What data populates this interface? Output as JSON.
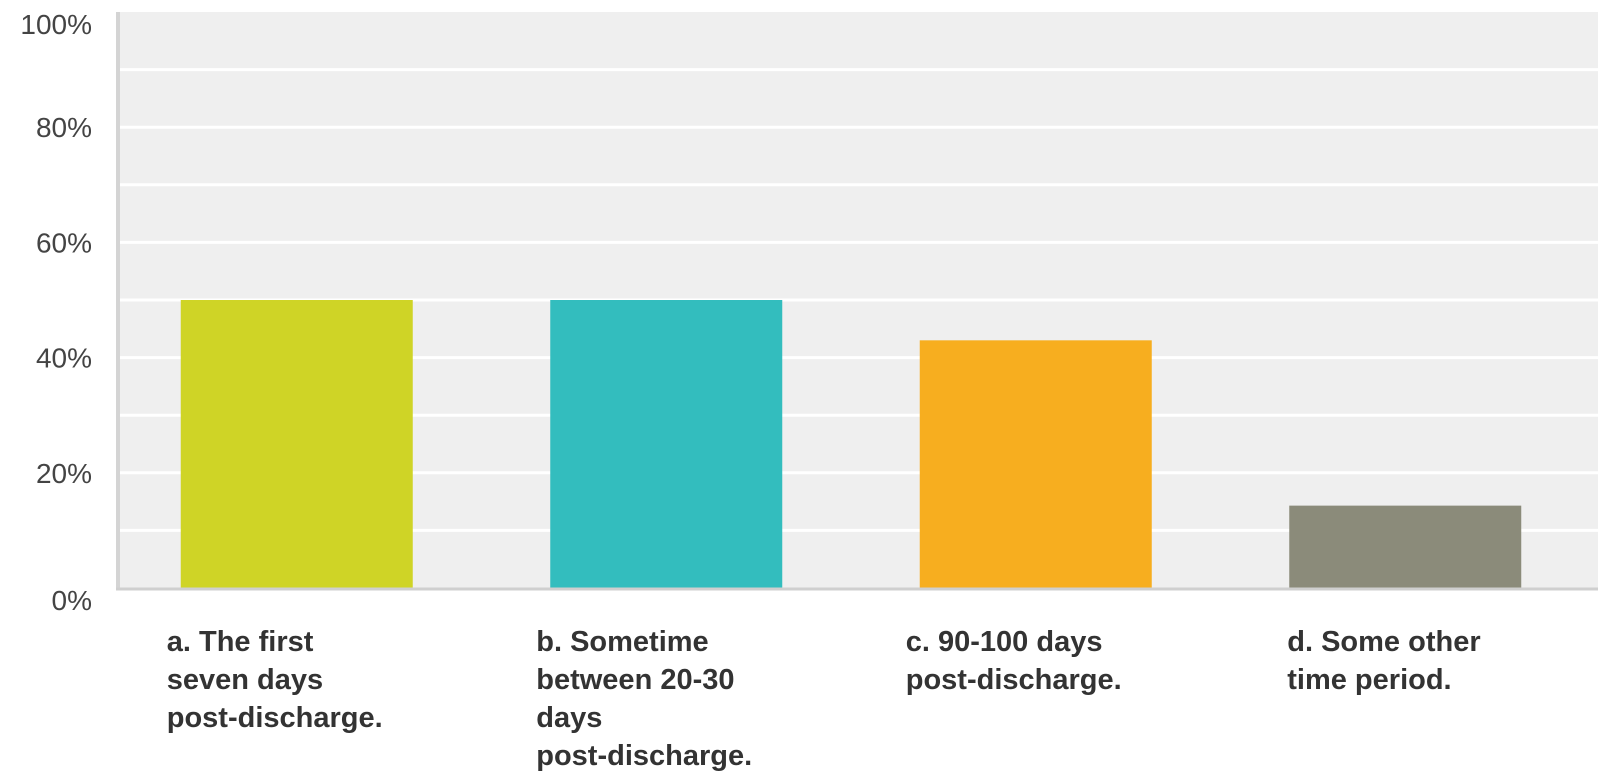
{
  "chart_data": {
    "type": "bar",
    "categories": [
      "a. The first seven days post-discharge.",
      "b. Sometime between 20-30 days post-discharge.",
      "c. 90-100 days post-discharge.",
      "d. Some other time period."
    ],
    "category_lines": [
      [
        "a. The first",
        "seven days",
        "post-discharge."
      ],
      [
        "b. Sometime",
        "between 20-30",
        "days",
        "post-discharge."
      ],
      [
        "c. 90-100 days",
        "post-discharge."
      ],
      [
        "d. Some other",
        "time period."
      ]
    ],
    "values": [
      50,
      50,
      43,
      14.3
    ],
    "colors": [
      "#cfd426",
      "#33bdbe",
      "#f7ae1f",
      "#8b8b7a"
    ],
    "ylim": [
      0,
      100
    ],
    "yticks": [
      0,
      20,
      40,
      60,
      80,
      100
    ],
    "ytick_labels": [
      "0%",
      "20%",
      "40%",
      "60%",
      "80%",
      "100%"
    ],
    "grid": true,
    "legend": "none",
    "plot_background": "#efefef",
    "grid_color": "#ffffff"
  }
}
